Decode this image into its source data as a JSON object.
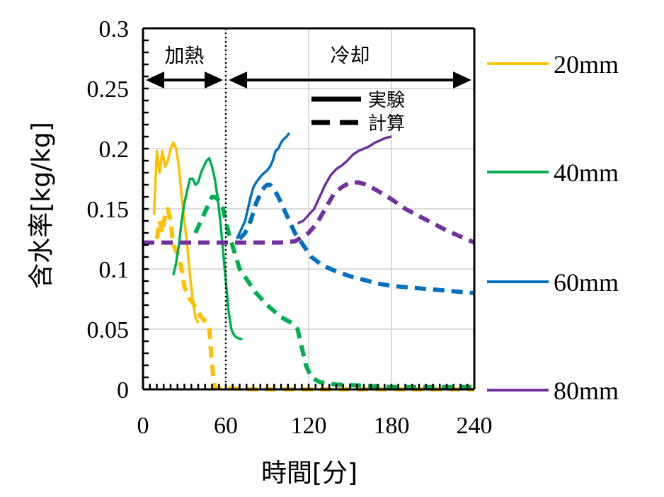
{
  "chart_data": {
    "type": "line",
    "title": "",
    "xlabel": "時間[分]",
    "ylabel": "含水率[kg/kg]",
    "xlim": [
      0,
      240
    ],
    "ylim": [
      0,
      0.3
    ],
    "x_ticks": [
      0,
      60,
      120,
      180,
      240
    ],
    "y_ticks": [
      0,
      0.05,
      0.1,
      0.15,
      0.2,
      0.25,
      0.3
    ],
    "x_tick_labels": [
      "0",
      "60",
      "120",
      "180",
      "240"
    ],
    "y_tick_labels": [
      "0",
      "0.05",
      "0.1",
      "0.15",
      "0.2",
      "0.25",
      "0.3"
    ],
    "grid": true,
    "phase_boundary_x": 60,
    "phases": [
      {
        "label": "加熱",
        "from": 0,
        "to": 60
      },
      {
        "label": "冷却",
        "from": 60,
        "to": 240
      }
    ],
    "line_style_legend": [
      {
        "label": "実験",
        "style": "solid"
      },
      {
        "label": "計算",
        "style": "dashed"
      }
    ],
    "series": [
      {
        "name": "20mm",
        "color": "#FFC000",
        "style": "solid",
        "x": [
          8,
          10,
          12,
          14,
          16,
          18,
          20,
          22,
          24,
          26,
          28,
          30,
          32,
          34,
          36,
          38,
          40
        ],
        "y": [
          0.145,
          0.198,
          0.18,
          0.198,
          0.185,
          0.19,
          0.2,
          0.205,
          0.2,
          0.185,
          0.16,
          0.14,
          0.12,
          0.095,
          0.075,
          0.06,
          0.055
        ]
      },
      {
        "name": "20mm",
        "color": "#FFC000",
        "style": "dashed",
        "x": [
          10,
          12,
          14,
          16,
          18,
          20,
          22,
          24,
          26,
          28,
          30,
          32,
          34,
          36,
          38,
          40,
          42,
          44,
          46,
          48,
          50,
          52,
          60,
          80,
          100,
          120,
          140,
          160,
          180,
          200,
          220,
          240
        ],
        "y": [
          0.125,
          0.14,
          0.13,
          0.145,
          0.15,
          0.14,
          0.12,
          0.115,
          0.11,
          0.1,
          0.085,
          0.08,
          0.075,
          0.072,
          0.068,
          0.065,
          0.06,
          0.058,
          0.055,
          0.05,
          0.02,
          0.001,
          0.001,
          0.0,
          0.0,
          0.0,
          0.0,
          0.0,
          0.0,
          0.0,
          0.0,
          0.0
        ]
      },
      {
        "name": "40mm",
        "color": "#00B050",
        "style": "solid",
        "x": [
          22,
          24,
          26,
          28,
          30,
          32,
          34,
          36,
          38,
          40,
          42,
          44,
          46,
          48,
          50,
          52,
          54,
          56,
          58,
          60,
          62,
          64,
          66,
          68,
          70,
          72
        ],
        "y": [
          0.095,
          0.105,
          0.12,
          0.14,
          0.155,
          0.165,
          0.175,
          0.175,
          0.17,
          0.172,
          0.18,
          0.185,
          0.19,
          0.192,
          0.185,
          0.175,
          0.16,
          0.14,
          0.115,
          0.09,
          0.065,
          0.05,
          0.045,
          0.043,
          0.042,
          0.042
        ]
      },
      {
        "name": "40mm",
        "color": "#00B050",
        "style": "dashed",
        "x": [
          38,
          40,
          42,
          44,
          46,
          48,
          50,
          52,
          54,
          56,
          58,
          60,
          62,
          66,
          70,
          76,
          82,
          90,
          100,
          108,
          112,
          114,
          118,
          122,
          128,
          140,
          160,
          180,
          200,
          220,
          240
        ],
        "y": [
          0.13,
          0.135,
          0.14,
          0.145,
          0.15,
          0.155,
          0.16,
          0.16,
          0.158,
          0.155,
          0.15,
          0.14,
          0.13,
          0.115,
          0.1,
          0.09,
          0.08,
          0.07,
          0.06,
          0.055,
          0.05,
          0.04,
          0.02,
          0.01,
          0.006,
          0.004,
          0.003,
          0.002,
          0.002,
          0.002,
          0.002
        ]
      },
      {
        "name": "60mm",
        "color": "#0070C0",
        "style": "solid",
        "x": [
          68,
          70,
          72,
          74,
          76,
          78,
          80,
          82,
          84,
          86,
          88,
          90,
          92,
          94,
          96,
          98,
          100,
          102,
          104,
          106
        ],
        "y": [
          0.125,
          0.13,
          0.135,
          0.14,
          0.15,
          0.16,
          0.168,
          0.172,
          0.175,
          0.178,
          0.18,
          0.182,
          0.185,
          0.19,
          0.198,
          0.2,
          0.205,
          0.208,
          0.21,
          0.213
        ]
      },
      {
        "name": "60mm",
        "color": "#0070C0",
        "style": "dashed",
        "x": [
          70,
          74,
          78,
          82,
          86,
          88,
          90,
          92,
          94,
          98,
          102,
          106,
          110,
          116,
          122,
          130,
          140,
          150,
          160,
          170,
          180,
          190,
          200,
          210,
          220,
          230,
          240
        ],
        "y": [
          0.125,
          0.13,
          0.14,
          0.155,
          0.165,
          0.168,
          0.17,
          0.17,
          0.168,
          0.16,
          0.15,
          0.14,
          0.13,
          0.12,
          0.11,
          0.103,
          0.098,
          0.094,
          0.091,
          0.088,
          0.086,
          0.085,
          0.084,
          0.083,
          0.082,
          0.081,
          0.08
        ]
      },
      {
        "name": "80mm",
        "color": "#7030A0",
        "style": "solid",
        "x": [
          112,
          116,
          120,
          124,
          128,
          132,
          136,
          140,
          144,
          148,
          152,
          156,
          160,
          164,
          168,
          172,
          176,
          180
        ],
        "y": [
          0.138,
          0.14,
          0.145,
          0.15,
          0.16,
          0.17,
          0.178,
          0.183,
          0.186,
          0.19,
          0.195,
          0.198,
          0.2,
          0.202,
          0.205,
          0.207,
          0.209,
          0.21
        ]
      },
      {
        "name": "80mm",
        "color": "#7030A0",
        "style": "dashed",
        "x": [
          0,
          20,
          40,
          60,
          80,
          100,
          110,
          116,
          120,
          126,
          132,
          138,
          144,
          150,
          156,
          162,
          170,
          180,
          190,
          200,
          210,
          220,
          230,
          240
        ],
        "y": [
          0.122,
          0.122,
          0.122,
          0.122,
          0.122,
          0.122,
          0.123,
          0.127,
          0.13,
          0.138,
          0.15,
          0.162,
          0.168,
          0.172,
          0.172,
          0.17,
          0.165,
          0.158,
          0.15,
          0.144,
          0.138,
          0.132,
          0.127,
          0.122
        ]
      }
    ],
    "legend_entries": [
      {
        "label": "20mm",
        "color": "#FFC000"
      },
      {
        "label": "40mm",
        "color": "#00B050"
      },
      {
        "label": "60mm",
        "color": "#0070C0"
      },
      {
        "label": "80mm",
        "color": "#7030A0"
      }
    ]
  }
}
